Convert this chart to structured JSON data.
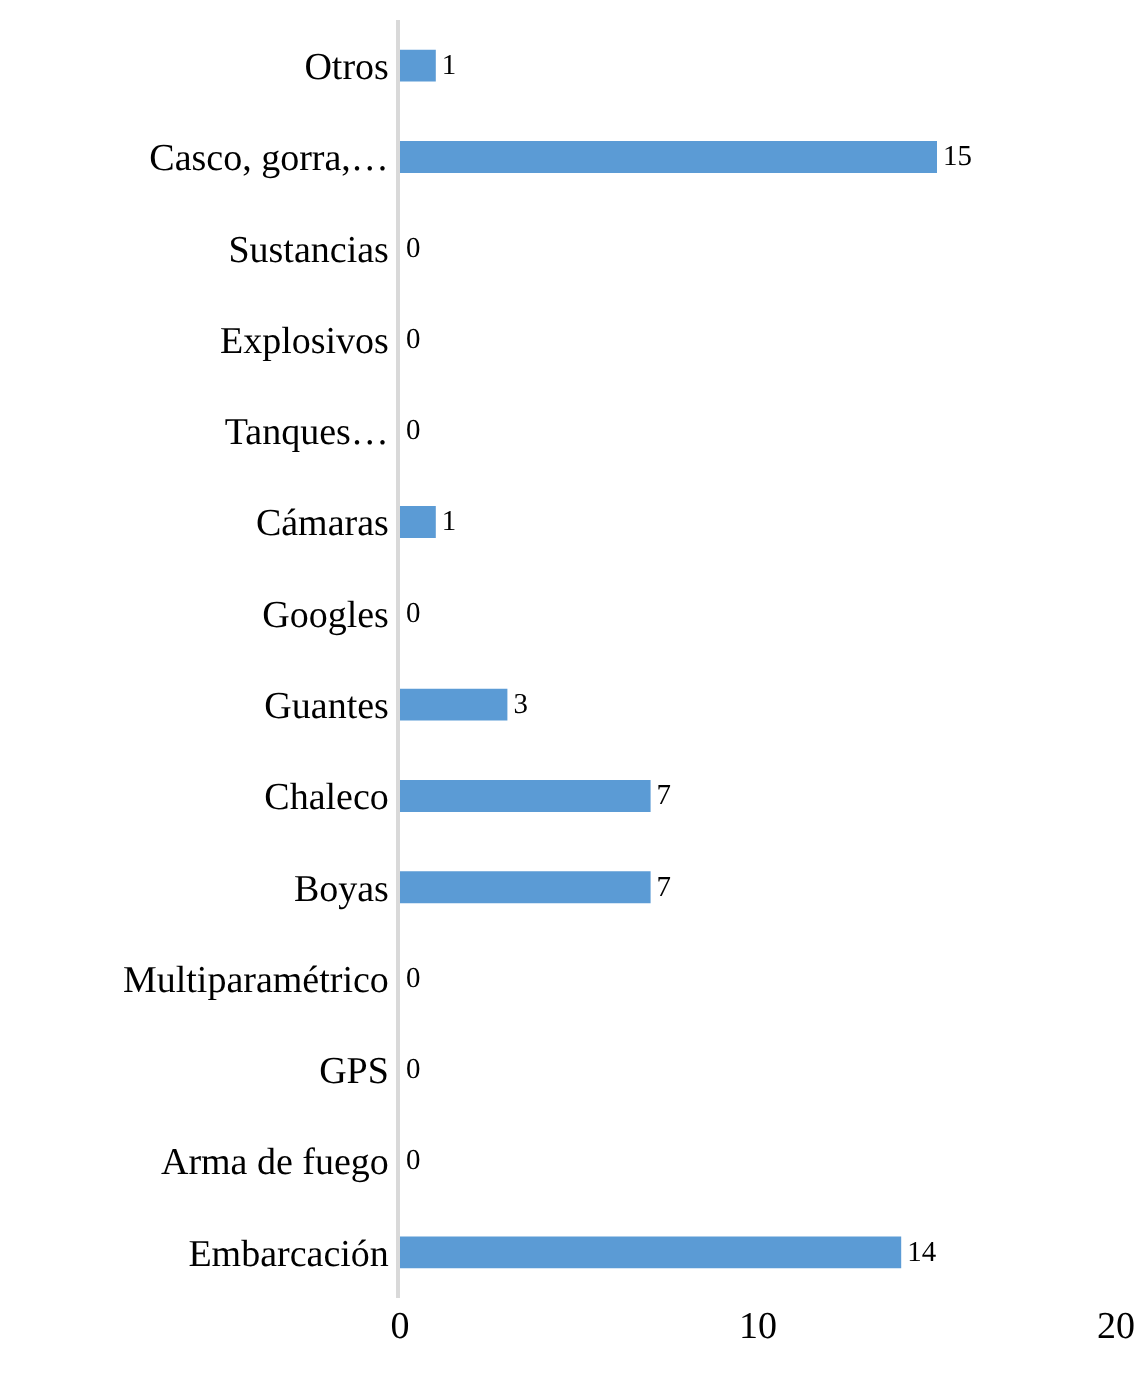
{
  "chart_data": {
    "type": "bar",
    "orientation": "horizontal",
    "categories": [
      "Otros",
      "Casco, gorra,…",
      "Sustancias",
      "Explosivos",
      "Tanques…",
      "Cámaras",
      "Googles",
      "Guantes",
      "Chaleco",
      "Boyas",
      "Multiparamétrico",
      "GPS",
      "Arma de fuego",
      "Embarcación"
    ],
    "values": [
      1,
      15,
      0,
      0,
      0,
      1,
      0,
      3,
      7,
      7,
      0,
      0,
      0,
      14
    ],
    "color": "#5b9bd5",
    "xlim": [
      0,
      20
    ],
    "xticks": [
      0,
      10,
      20
    ],
    "grid": false,
    "data_labels": true
  }
}
